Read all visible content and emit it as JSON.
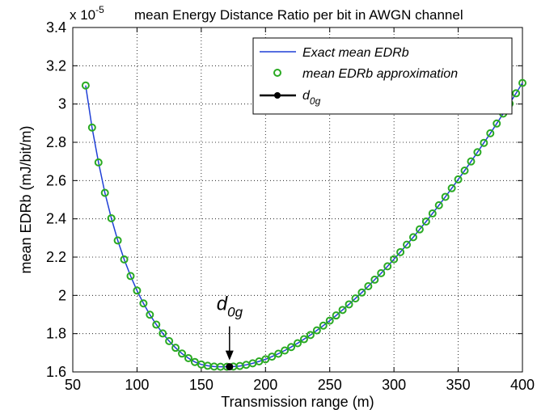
{
  "chart_data": {
    "type": "line",
    "title": "mean Energy Distance Ratio per bit in AWGN channel",
    "exponent_label": "x 10",
    "exponent_power": "-5",
    "xlabel": "Transmission range (m)",
    "ylabel": "mean EDRb (mJ/bit/m)",
    "xlim": [
      50,
      400
    ],
    "ylim": [
      1.6,
      3.4
    ],
    "xticks": [
      50,
      100,
      150,
      200,
      250,
      300,
      350,
      400
    ],
    "yticks": [
      1.6,
      1.8,
      2.0,
      2.2,
      2.4,
      2.6,
      2.8,
      3.0,
      3.2,
      3.4
    ],
    "ytick_labels": [
      "1.6",
      "1.8",
      "2",
      "2.2",
      "2.4",
      "2.6",
      "2.8",
      "3",
      "3.2",
      "3.4"
    ],
    "grid": true,
    "legend_position": "top-right",
    "optimum": {
      "x": 172,
      "y": 1.627
    },
    "annotation": {
      "text": "d",
      "subscript": "0g",
      "x": 172
    },
    "series": [
      {
        "name": "Exact mean EDRb",
        "style": "line",
        "color": "#1f3fd6",
        "x": [
          60,
          65,
          70,
          75,
          80,
          85,
          90,
          95,
          100,
          105,
          110,
          115,
          120,
          125,
          130,
          135,
          140,
          145,
          150,
          155,
          160,
          165,
          170,
          172,
          175,
          180,
          185,
          190,
          195,
          200,
          205,
          210,
          215,
          220,
          225,
          230,
          235,
          240,
          245,
          250,
          255,
          260,
          265,
          270,
          275,
          280,
          285,
          290,
          295,
          300,
          305,
          310,
          315,
          320,
          325,
          330,
          335,
          340,
          345,
          350,
          355,
          360,
          365,
          370,
          375,
          380,
          385,
          390,
          395,
          400
        ],
        "y": [
          3.097,
          2.877,
          2.695,
          2.536,
          2.403,
          2.287,
          2.188,
          2.101,
          2.025,
          1.958,
          1.899,
          1.847,
          1.801,
          1.761,
          1.726,
          1.696,
          1.672,
          1.652,
          1.639,
          1.632,
          1.628,
          1.627,
          1.627,
          1.627,
          1.628,
          1.631,
          1.637,
          1.645,
          1.655,
          1.666,
          1.68,
          1.695,
          1.712,
          1.73,
          1.75,
          1.771,
          1.793,
          1.817,
          1.842,
          1.868,
          1.895,
          1.924,
          1.953,
          1.984,
          2.015,
          2.048,
          2.082,
          2.116,
          2.152,
          2.189,
          2.226,
          2.265,
          2.304,
          2.345,
          2.386,
          2.428,
          2.471,
          2.515,
          2.56,
          2.606,
          2.652,
          2.7,
          2.748,
          2.797,
          2.847,
          2.898,
          2.95,
          3.002,
          3.056,
          3.11
        ]
      },
      {
        "name": "mean EDRb approximation",
        "style": "markers",
        "color": "#2aaa22",
        "x": [
          60,
          65,
          70,
          75,
          80,
          85,
          90,
          95,
          100,
          105,
          110,
          115,
          120,
          125,
          130,
          135,
          140,
          145,
          150,
          155,
          160,
          165,
          170,
          175,
          180,
          185,
          190,
          195,
          200,
          205,
          210,
          215,
          220,
          225,
          230,
          235,
          240,
          245,
          250,
          255,
          260,
          265,
          270,
          275,
          280,
          285,
          290,
          295,
          300,
          305,
          310,
          315,
          320,
          325,
          330,
          335,
          340,
          345,
          350,
          355,
          360,
          365,
          370,
          375,
          380,
          385,
          390,
          395,
          400
        ],
        "y": [
          3.097,
          2.877,
          2.695,
          2.536,
          2.403,
          2.287,
          2.188,
          2.101,
          2.025,
          1.958,
          1.899,
          1.847,
          1.801,
          1.761,
          1.726,
          1.696,
          1.672,
          1.652,
          1.639,
          1.632,
          1.628,
          1.627,
          1.627,
          1.628,
          1.631,
          1.637,
          1.645,
          1.655,
          1.666,
          1.68,
          1.695,
          1.712,
          1.73,
          1.75,
          1.771,
          1.793,
          1.817,
          1.842,
          1.868,
          1.895,
          1.924,
          1.953,
          1.984,
          2.015,
          2.048,
          2.082,
          2.116,
          2.152,
          2.189,
          2.226,
          2.265,
          2.304,
          2.345,
          2.386,
          2.428,
          2.471,
          2.515,
          2.56,
          2.606,
          2.652,
          2.7,
          2.748,
          2.797,
          2.847,
          2.898,
          2.95,
          3.002,
          3.056,
          3.11
        ]
      },
      {
        "name": "d",
        "name_subscript": "0g",
        "style": "point",
        "color": "#000000",
        "x": [
          172
        ],
        "y": [
          1.627
        ]
      }
    ]
  }
}
